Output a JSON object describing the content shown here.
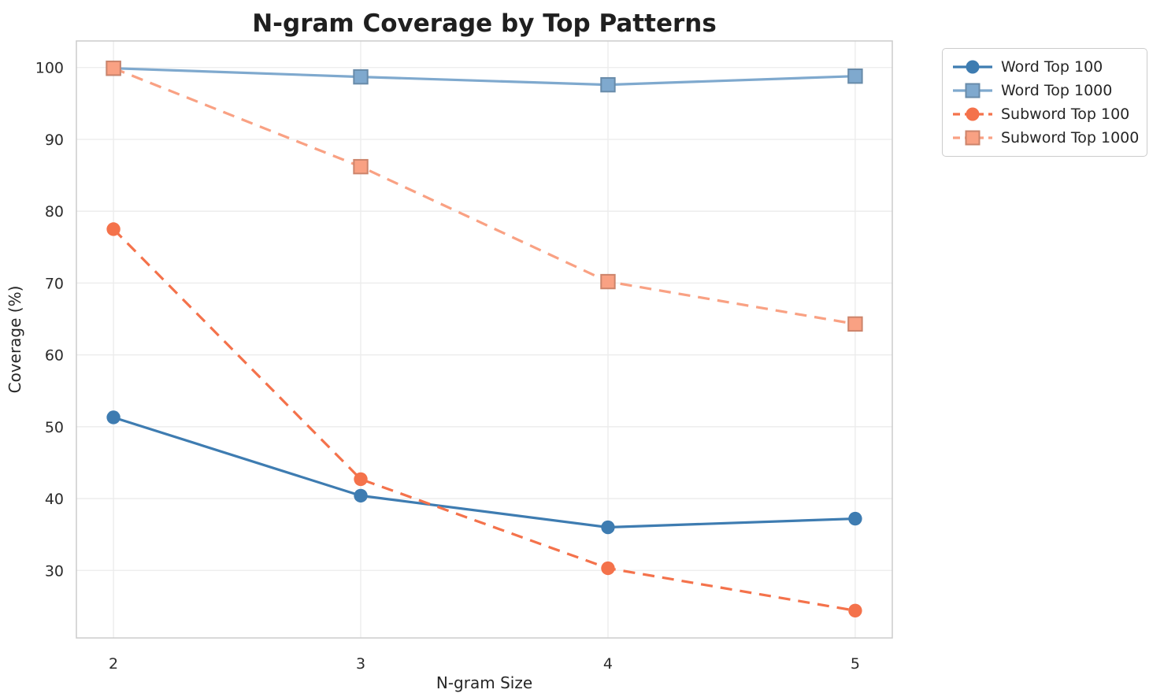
{
  "chart_data": {
    "type": "line",
    "title": "N-gram Coverage by Top Patterns",
    "xlabel": "N-gram Size",
    "ylabel": "Coverage (%)",
    "x": [
      2,
      3,
      4,
      5
    ],
    "xticks": [
      "2",
      "3",
      "4",
      "5"
    ],
    "yticks": [
      30,
      40,
      50,
      60,
      70,
      80,
      90,
      100
    ],
    "xlim": [
      1.85,
      5.15
    ],
    "ylim": [
      20.6,
      103.7
    ],
    "grid": true,
    "legend_position": "outside upper right",
    "series": [
      {
        "name": "Word Top 100",
        "color": "#3E7CB1",
        "line_style": "solid",
        "marker": "circle",
        "values": [
          51.3,
          40.4,
          36.0,
          37.2
        ]
      },
      {
        "name": "Word Top 1000",
        "color": "#7FA9CE",
        "line_style": "solid",
        "marker": "square",
        "values": [
          99.9,
          98.7,
          97.6,
          98.8
        ]
      },
      {
        "name": "Subword Top 100",
        "color": "#F4724B",
        "line_style": "dashed",
        "marker": "circle",
        "values": [
          77.5,
          42.7,
          30.3,
          24.4
        ]
      },
      {
        "name": "Subword Top 1000",
        "color": "#F9A183",
        "line_style": "dashed",
        "marker": "square",
        "values": [
          99.9,
          86.2,
          70.2,
          64.3
        ]
      }
    ]
  }
}
